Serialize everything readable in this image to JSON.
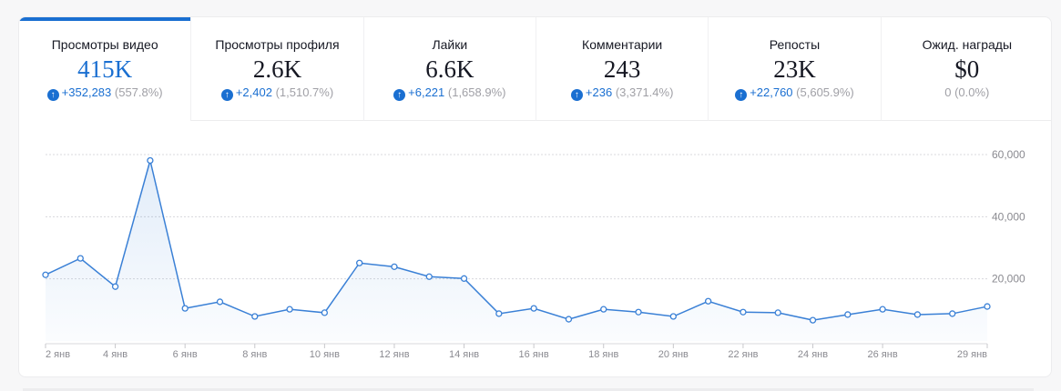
{
  "tabs": [
    {
      "label": "Просмотры видео",
      "value": "415K",
      "change": "+352,283",
      "percent": "(557.8%)",
      "up": true,
      "active": true
    },
    {
      "label": "Просмотры профиля",
      "value": "2.6K",
      "change": "+2,402",
      "percent": "(1,510.7%)",
      "up": true
    },
    {
      "label": "Лайки",
      "value": "6.6K",
      "change": "+6,221",
      "percent": "(1,658.9%)",
      "up": true
    },
    {
      "label": "Комментарии",
      "value": "243",
      "change": "+236",
      "percent": "(3,371.4%)",
      "up": true
    },
    {
      "label": "Репосты",
      "value": "23K",
      "change": "+22,760",
      "percent": "(5,605.9%)",
      "up": true
    },
    {
      "label": "Ожид. награды",
      "value": "$0",
      "change": "",
      "percent": "0 (0.0%)",
      "up": false
    }
  ],
  "colors": {
    "accent": "#1a6fd1",
    "muted": "#a0a0a6"
  },
  "chart_data": {
    "type": "area",
    "x": [
      "2 янв",
      "3 янв",
      "4 янв",
      "5 янв",
      "6 янв",
      "7 янв",
      "8 янв",
      "9 янв",
      "10 янв",
      "11 янв",
      "12 янв",
      "13 янв",
      "14 янв",
      "15 янв",
      "16 янв",
      "17 янв",
      "18 янв",
      "19 янв",
      "20 янв",
      "21 янв",
      "22 янв",
      "23 янв",
      "24 янв",
      "25 янв",
      "26 янв",
      "27 янв",
      "28 янв",
      "29 янв"
    ],
    "values": [
      21300,
      26600,
      17500,
      58100,
      10500,
      12600,
      7900,
      10200,
      9100,
      25100,
      23900,
      20700,
      20100,
      8800,
      10500,
      7000,
      10200,
      9300,
      7900,
      12800,
      9300,
      9100,
      6700,
      8500,
      10200,
      8500,
      8800,
      11100
    ],
    "xtick_labels": [
      "2 янв",
      "4 янв",
      "6 янв",
      "8 янв",
      "10 янв",
      "12 янв",
      "14 янв",
      "16 янв",
      "18 янв",
      "20 янв",
      "22 янв",
      "24 янв",
      "26 янв",
      "29 янв"
    ],
    "ytick_labels": [
      "20,000",
      "40,000",
      "60,000"
    ],
    "yticks": [
      20000,
      40000,
      60000
    ],
    "ylim": [
      0,
      60000
    ],
    "grid": true,
    "yaxis_side": "right"
  }
}
